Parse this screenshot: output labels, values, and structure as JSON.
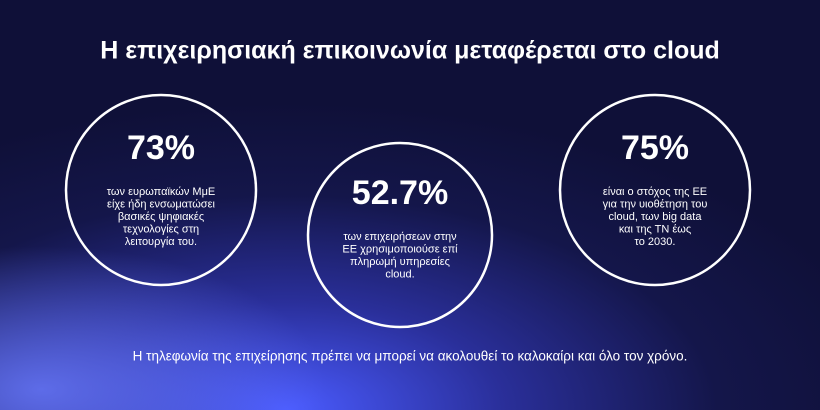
{
  "title": "Η επιχειρησιακή επικοινωνία μεταφέρεται στο cloud",
  "stats": [
    {
      "figure": "73%",
      "lines": [
        "των ευρωπαϊκών ΜμΕ",
        "είχε ήδη ενσωματώσει",
        "βασικές ψηφιακές",
        "τεχνολογίες στη",
        "λειτουργία του."
      ]
    },
    {
      "figure": "52.7%",
      "lines": [
        "των επιχειρήσεων στην",
        "ΕΕ χρησιμοποιούσε επί",
        "πληρωμή υπηρεσίες",
        "cloud."
      ]
    },
    {
      "figure": "75%",
      "lines": [
        "είναι ο στόχος της ΕΕ",
        "για την υιοθέτηση του",
        "cloud, των big data",
        "και της ΤΝ έως",
        "το 2030."
      ]
    }
  ],
  "footer": "Η τηλεφωνία της επιχείρησης πρέπει να μπορεί να ακολουθεί το καλοκαίρι και όλο τον χρόνο."
}
